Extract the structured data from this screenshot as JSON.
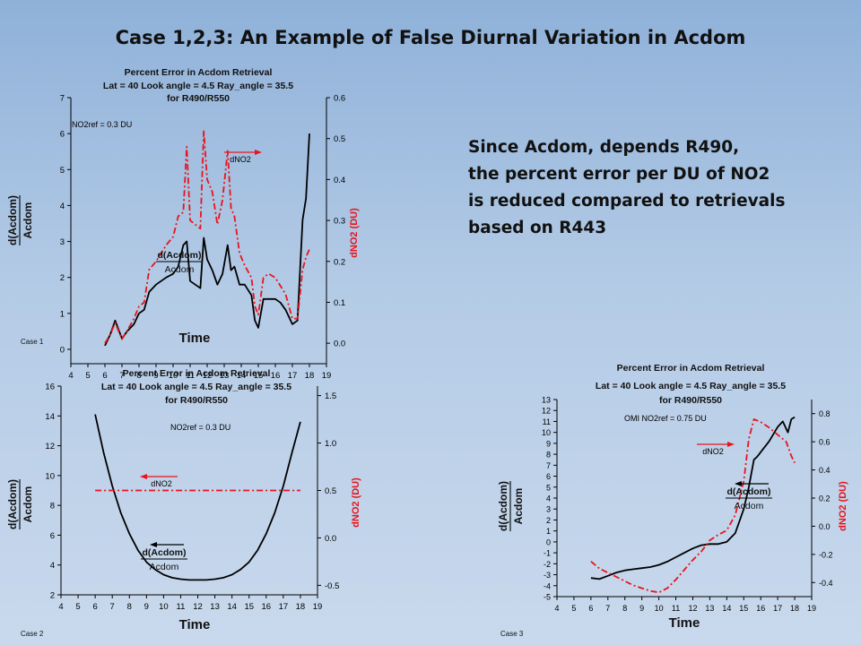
{
  "slide": {
    "title": "Case 1,2,3: An Example of False Diurnal Variation in Acdom",
    "body_lines": [
      "Since Acdom, depends R490,",
      "the percent error per DU of NO2",
      "is reduced compared to retrievals",
      "based on R443"
    ]
  },
  "colors": {
    "black_series": "#000000",
    "red_series": "#e8141c",
    "right_axis_label": "#e8141c"
  },
  "chart_data": [
    {
      "type": "line",
      "case_label": "Case 1",
      "title_lines": [
        "Percent Error in Acdom Retrieval",
        "Lat = 40 Look angle = 4.5  Ray_angle = 35.5",
        "for R490/R550"
      ],
      "ref_note": "NO2ref = 0.3 DU",
      "xlabel": "Time",
      "ylabel_top": "d(Acdom)",
      "ylabel_bottom": "Acdom",
      "y2label": "dNO2 (DU)",
      "xlim": [
        4,
        19
      ],
      "x_ticks": [
        4,
        5,
        6,
        7,
        8,
        9,
        10,
        11,
        12,
        13,
        14,
        15,
        16,
        17,
        18,
        19
      ],
      "ylim": [
        -0.4,
        7
      ],
      "y_ticks": [
        0,
        1,
        2,
        3,
        4,
        5,
        6,
        7
      ],
      "y2lim": [
        -0.05,
        0.6
      ],
      "y2_ticks": [
        "0.0",
        "0.1",
        "0.2",
        "0.3",
        "0.4",
        "0.5",
        "0.6"
      ],
      "series": [
        {
          "axis": "left",
          "style": "solid",
          "x": [
            6,
            6.3,
            6.6,
            7,
            7.3,
            7.7,
            8,
            8.3,
            8.6,
            9,
            9.3,
            9.6,
            10,
            10.3,
            10.6,
            10.8,
            11,
            11.3,
            11.6,
            11.8,
            12,
            12.3,
            12.6,
            12.9,
            13.2,
            13.4,
            13.6,
            13.9,
            14.2,
            14.6,
            14.8,
            15,
            15.3,
            15.6,
            16,
            16.3,
            16.6,
            17,
            17.3,
            17.6,
            17.8,
            18
          ],
          "y": [
            0.1,
            0.4,
            0.8,
            0.3,
            0.5,
            0.7,
            1,
            1.1,
            1.6,
            1.8,
            1.9,
            2,
            2.1,
            2.3,
            2.9,
            3,
            1.9,
            1.8,
            1.7,
            3.1,
            2.5,
            2.2,
            1.8,
            2.1,
            2.9,
            2.2,
            2.3,
            1.8,
            1.8,
            1.5,
            0.8,
            0.6,
            1.4,
            1.4,
            1.4,
            1.3,
            1.1,
            0.7,
            0.8,
            3.6,
            4.2,
            6
          ]
        },
        {
          "axis": "right",
          "style": "dashdot",
          "x": [
            6,
            6.3,
            6.6,
            7,
            7.3,
            7.7,
            8,
            8.3,
            8.6,
            9,
            9.3,
            9.6,
            10,
            10.3,
            10.6,
            10.8,
            11,
            11.3,
            11.6,
            11.8,
            12,
            12.3,
            12.6,
            12.9,
            13.2,
            13.4,
            13.6,
            13.9,
            14.2,
            14.6,
            14.8,
            15,
            15.3,
            15.6,
            16,
            16.3,
            16.6,
            17,
            17.3,
            17.6,
            17.8,
            18
          ],
          "y": [
            0,
            0.02,
            0.05,
            0.01,
            0.03,
            0.06,
            0.09,
            0.1,
            0.18,
            0.2,
            0.22,
            0.24,
            0.26,
            0.31,
            0.32,
            0.48,
            0.3,
            0.29,
            0.28,
            0.52,
            0.4,
            0.37,
            0.29,
            0.35,
            0.47,
            0.33,
            0.31,
            0.22,
            0.19,
            0.16,
            0.09,
            0.07,
            0.16,
            0.17,
            0.16,
            0.14,
            0.12,
            0.06,
            0.06,
            0.18,
            0.21,
            0.23
          ]
        }
      ],
      "annotations": [
        {
          "text": "dNO2",
          "arrow": "right"
        },
        {
          "text_top": "d(Acdom)",
          "text_bottom": "Acdom"
        }
      ]
    },
    {
      "type": "line",
      "case_label": "Case 2",
      "title_lines": [
        "Percent Error in Acdom Retrieval",
        "Lat = 40 Look angle = 4.5  Ray_angle = 35.5",
        "for R490/R550"
      ],
      "ref_note": "NO2ref = 0.3 DU",
      "xlabel": "Time",
      "ylabel_top": "d(Acdom)",
      "ylabel_bottom": "Acdom",
      "y2label": "dNO2 (DU)",
      "xlim": [
        4,
        19
      ],
      "x_ticks": [
        4,
        5,
        6,
        7,
        8,
        9,
        10,
        11,
        12,
        13,
        14,
        15,
        16,
        17,
        18,
        19
      ],
      "ylim": [
        2,
        16
      ],
      "y_ticks": [
        2,
        4,
        6,
        8,
        10,
        12,
        14,
        16
      ],
      "y2lim": [
        -0.6,
        1.6
      ],
      "y2_ticks": [
        "-0.5",
        "0.0",
        "0.5",
        "1.0",
        "1.5"
      ],
      "series": [
        {
          "axis": "left",
          "style": "solid",
          "x": [
            6,
            6.5,
            7,
            7.5,
            8,
            8.5,
            9,
            9.5,
            10,
            10.5,
            11,
            11.5,
            12,
            12.5,
            13,
            13.5,
            14,
            14.5,
            15,
            15.5,
            16,
            16.5,
            17,
            17.5,
            18
          ],
          "y": [
            14.1,
            11.5,
            9.3,
            7.5,
            6.1,
            5,
            4.2,
            3.7,
            3.35,
            3.15,
            3.05,
            3.0,
            3.0,
            3.0,
            3.05,
            3.15,
            3.35,
            3.7,
            4.2,
            5,
            6.1,
            7.5,
            9.3,
            11.5,
            13.6
          ]
        },
        {
          "axis": "right",
          "style": "dashdot",
          "x": [
            6,
            18
          ],
          "y": [
            0.5,
            0.5
          ]
        }
      ],
      "annotations": [
        {
          "text": "dNO2",
          "arrow": "left"
        },
        {
          "text_top": "d(Acdom)",
          "text_bottom": "Acdom"
        }
      ]
    },
    {
      "type": "line",
      "case_label": "Case 3",
      "title_lines": [
        "Percent Error in Acdom Retrieval",
        "Lat = 40 Look angle = 4.5  Ray_angle = 35.5",
        "for R490/R550"
      ],
      "ref_note": "OMI NO2ref = 0.75 DU",
      "xlabel": "Time",
      "ylabel_top": "d(Acdom)",
      "ylabel_bottom": "Acdom",
      "y2label": "dNO2 (DU)",
      "xlim": [
        4,
        19
      ],
      "x_ticks": [
        4,
        5,
        6,
        7,
        8,
        9,
        10,
        11,
        12,
        13,
        14,
        15,
        16,
        17,
        18,
        19
      ],
      "ylim": [
        -5,
        13
      ],
      "y_ticks": [
        -5,
        -4,
        -3,
        -2,
        -1,
        0,
        1,
        2,
        3,
        4,
        5,
        6,
        7,
        8,
        9,
        10,
        11,
        12,
        13
      ],
      "y2lim": [
        -0.5,
        0.9
      ],
      "y2_ticks": [
        "-0.4",
        "-0.2",
        "0.0",
        "0.2",
        "0.4",
        "0.6",
        "0.8"
      ],
      "series": [
        {
          "axis": "left",
          "style": "solid",
          "x": [
            6,
            6.5,
            7,
            7.5,
            8,
            8.5,
            9,
            9.5,
            10,
            10.5,
            11,
            11.5,
            12,
            12.5,
            13,
            13.5,
            14,
            14.5,
            15,
            15.3,
            15.6,
            15.8,
            16,
            16.5,
            17,
            17.3,
            17.6,
            17.8,
            18
          ],
          "y": [
            -3.3,
            -3.4,
            -3.1,
            -2.8,
            -2.6,
            -2.5,
            -2.4,
            -2.3,
            -2.1,
            -1.8,
            -1.4,
            -1,
            -0.6,
            -0.3,
            -0.2,
            -0.2,
            0,
            0.8,
            3,
            5,
            7.5,
            7.8,
            8.2,
            9.2,
            10.5,
            11,
            10,
            11.2,
            11.4
          ]
        },
        {
          "axis": "right",
          "style": "dashdot",
          "x": [
            6,
            6.5,
            7,
            7.5,
            8,
            8.5,
            9,
            9.5,
            10,
            10.5,
            11,
            11.5,
            12,
            12.5,
            13,
            13.5,
            14,
            14.5,
            15,
            15.3,
            15.6,
            16,
            16.5,
            17,
            17.5,
            17.8,
            18
          ],
          "y": [
            -0.25,
            -0.3,
            -0.33,
            -0.36,
            -0.39,
            -0.42,
            -0.44,
            -0.46,
            -0.47,
            -0.44,
            -0.38,
            -0.31,
            -0.24,
            -0.18,
            -0.1,
            -0.06,
            -0.03,
            0.08,
            0.32,
            0.62,
            0.76,
            0.74,
            0.7,
            0.65,
            0.6,
            0.5,
            0.45
          ]
        }
      ],
      "annotations": [
        {
          "text": "dNO2",
          "arrow": "right"
        },
        {
          "text_top": "d(Acdom)",
          "text_bottom": "Acdom"
        }
      ]
    }
  ]
}
